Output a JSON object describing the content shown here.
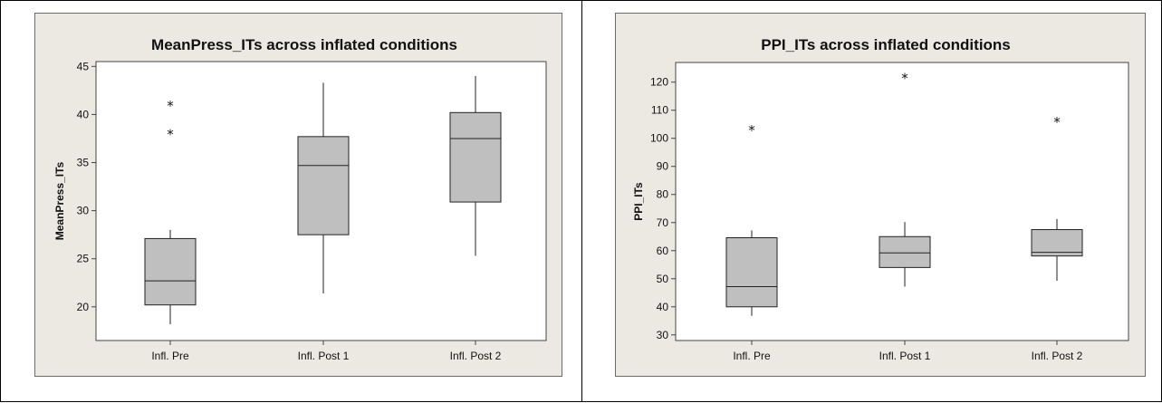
{
  "chart_data": [
    {
      "type": "box",
      "title": "MeanPress_ITs across inflated conditions",
      "xlabel": "",
      "ylabel": "MeanPress_ITs",
      "ylim": [
        16.5,
        45.5
      ],
      "yticks": [
        20,
        25,
        30,
        35,
        40,
        45
      ],
      "categories": [
        "Infl. Pre",
        "Infl. Post 1",
        "Infl. Post 2"
      ],
      "boxes": [
        {
          "whisker_low": 18.2,
          "q1": 20.2,
          "median": 22.7,
          "q3": 27.1,
          "whisker_high": 28.0,
          "outliers": [
            38.0,
            41.0
          ]
        },
        {
          "whisker_low": 21.4,
          "q1": 27.5,
          "median": 34.7,
          "q3": 37.7,
          "whisker_high": 43.3,
          "outliers": []
        },
        {
          "whisker_low": 25.3,
          "q1": 30.9,
          "median": 37.5,
          "q3": 40.2,
          "whisker_high": 44.0,
          "outliers": []
        }
      ],
      "grid": false,
      "colors": {
        "box_fill": "#bfbfbf",
        "frame_bg": "#ece9e2",
        "plot_bg": "#ffffff"
      }
    },
    {
      "type": "box",
      "title": "PPI_ITs across inflated conditions",
      "xlabel": "",
      "ylabel": "PPI_ITs",
      "ylim": [
        28,
        127
      ],
      "yticks": [
        30,
        40,
        50,
        60,
        70,
        80,
        90,
        100,
        110,
        120
      ],
      "categories": [
        "Infl. Pre",
        "Infl. Post 1",
        "Infl. Post 2"
      ],
      "boxes": [
        {
          "whisker_low": 36.8,
          "q1": 40.0,
          "median": 47.2,
          "q3": 64.6,
          "whisker_high": 67.2,
          "outliers": [
            103.2
          ]
        },
        {
          "whisker_low": 47.2,
          "q1": 54.0,
          "median": 59.2,
          "q3": 65.0,
          "whisker_high": 70.2,
          "outliers": [
            121.6
          ]
        },
        {
          "whisker_low": 49.3,
          "q1": 58.1,
          "median": 59.4,
          "q3": 67.5,
          "whisker_high": 71.3,
          "outliers": [
            106.0
          ]
        }
      ],
      "grid": false,
      "colors": {
        "box_fill": "#bfbfbf",
        "frame_bg": "#ece9e2",
        "plot_bg": "#ffffff"
      }
    }
  ]
}
